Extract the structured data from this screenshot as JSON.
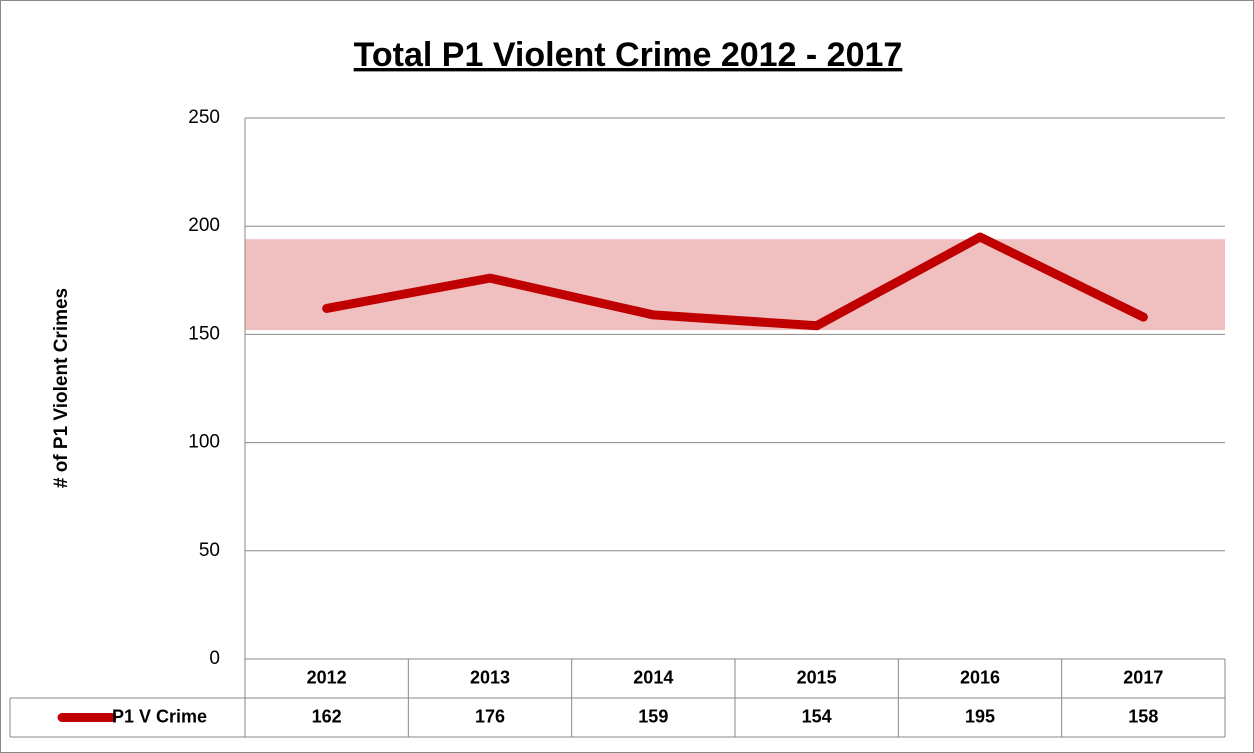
{
  "chart_data": {
    "type": "line",
    "title": "Total P1 Violent Crime 2012 - 2017",
    "y_label": "# of P1 Violent Crimes",
    "categories": [
      "2012",
      "2013",
      "2014",
      "2015",
      "2016",
      "2017"
    ],
    "series": [
      {
        "name": "P1 V Crime",
        "color": "#c00000",
        "values": [
          162,
          176,
          159,
          154,
          195,
          158
        ]
      }
    ],
    "band": [
      152,
      194
    ],
    "band_color": "#f0c0c0",
    "ylim": [
      0,
      250
    ],
    "yticks": [
      0,
      50,
      100,
      150,
      200,
      250
    ],
    "grid": true,
    "data_table": true
  }
}
